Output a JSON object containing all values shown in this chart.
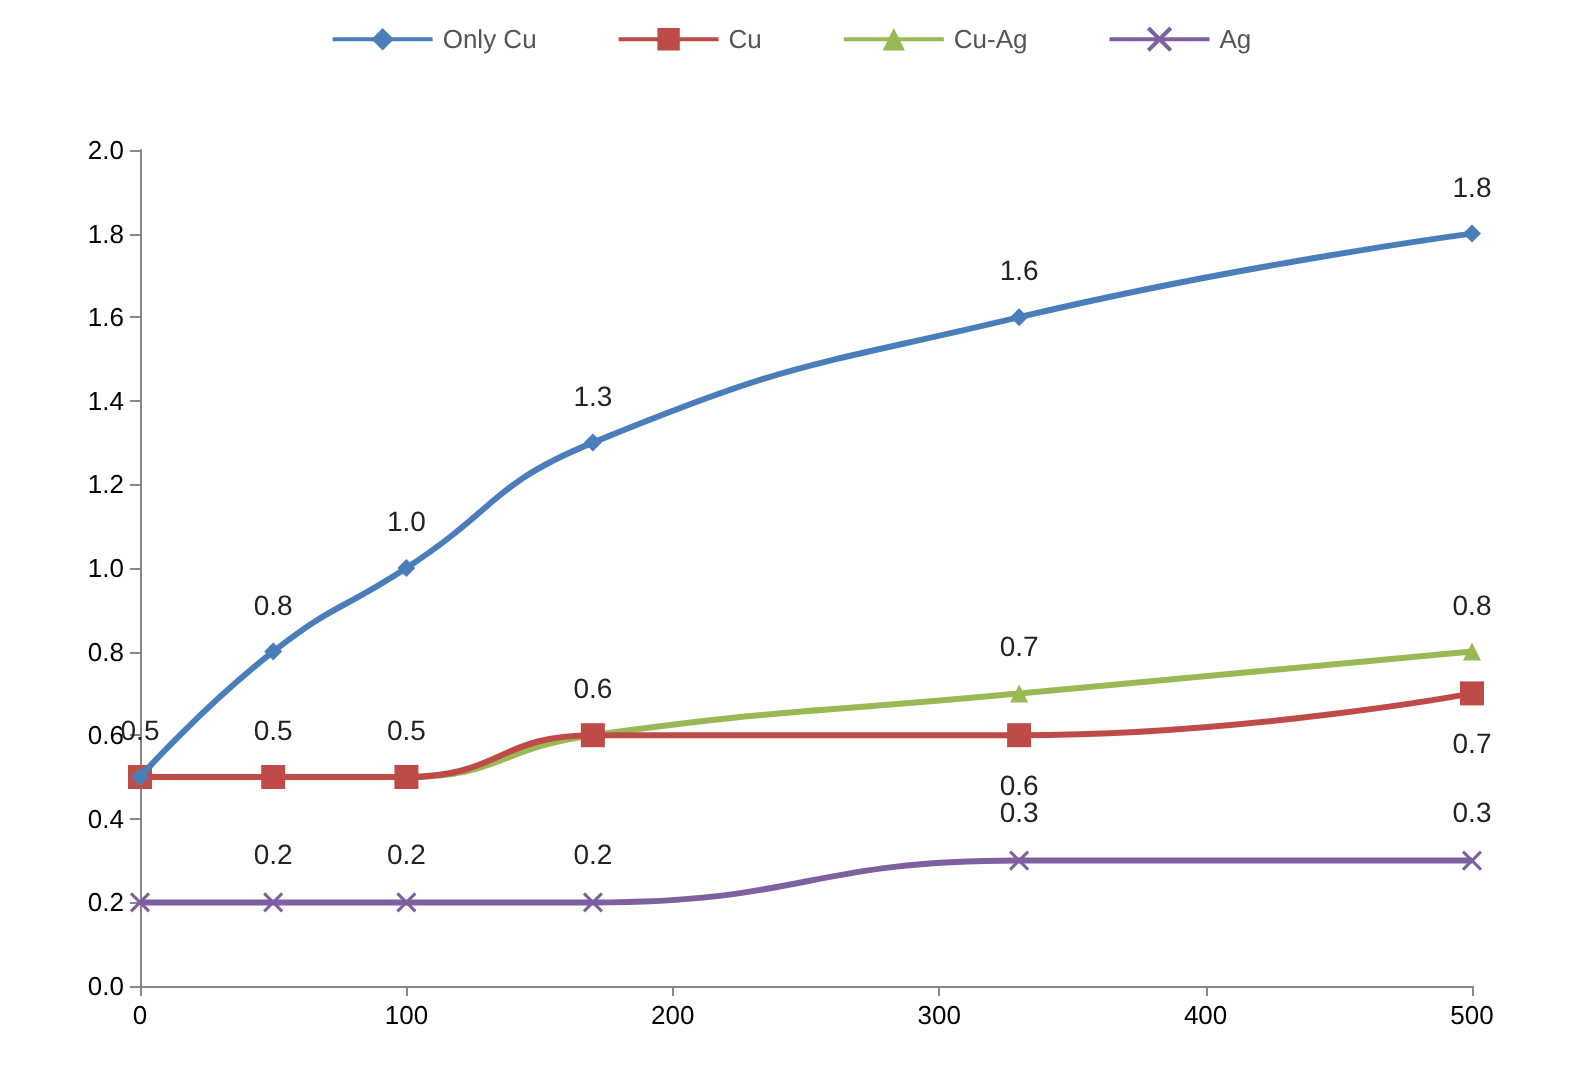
{
  "chart_data": {
    "type": "line",
    "x": [
      0,
      50,
      100,
      170,
      330,
      500
    ],
    "series": [
      {
        "name": "Only Cu",
        "color": "#4a7ebb",
        "marker": "diamond",
        "values": [
          0.5,
          0.8,
          1.0,
          1.3,
          1.6,
          1.8
        ],
        "value_labels": [
          "0.5",
          "0.8",
          "1.0",
          "1.3",
          "1.6",
          "1.8"
        ]
      },
      {
        "name": "Cu",
        "color": "#be4b48",
        "marker": "square",
        "values": [
          0.5,
          0.5,
          0.5,
          0.6,
          0.6,
          0.7
        ],
        "value_labels": [
          null,
          null,
          null,
          null,
          "0.6",
          "0.7"
        ]
      },
      {
        "name": "Cu-Ag",
        "color": "#98b954",
        "marker": "triangle",
        "values": [
          0.5,
          0.5,
          0.5,
          0.6,
          0.7,
          0.8
        ],
        "value_labels": [
          null,
          "0.5",
          "0.5",
          "0.6",
          "0.7",
          "0.8"
        ]
      },
      {
        "name": "Ag",
        "color": "#7d60a0",
        "marker": "cross",
        "values": [
          0.2,
          0.2,
          0.2,
          0.2,
          0.3,
          0.3
        ],
        "value_labels": [
          null,
          "0.2",
          "0.2",
          "0.2",
          "0.3",
          "0.3"
        ]
      }
    ],
    "xlim": [
      0,
      500
    ],
    "xticks": [
      0,
      100,
      200,
      300,
      400,
      500
    ],
    "ylim": [
      0,
      2
    ],
    "yticks": [
      {
        "value": 0,
        "label": "0.0"
      },
      {
        "value": 0.2,
        "label": "0.2"
      },
      {
        "value": 0.4,
        "label": "0.4"
      },
      {
        "value": 0.6,
        "label": "0.6"
      },
      {
        "value": 0.8,
        "label": "0.8"
      },
      {
        "value": 1.0,
        "label": "1.0"
      },
      {
        "value": 1.2,
        "label": "1.2"
      },
      {
        "value": 1.4,
        "label": "1.4"
      },
      {
        "value": 1.6,
        "label": "1.6"
      },
      {
        "value": 1.8,
        "label": "1.8"
      },
      {
        "value": 2.0,
        "label": "2.0"
      }
    ],
    "grid": false,
    "legend": "top"
  }
}
